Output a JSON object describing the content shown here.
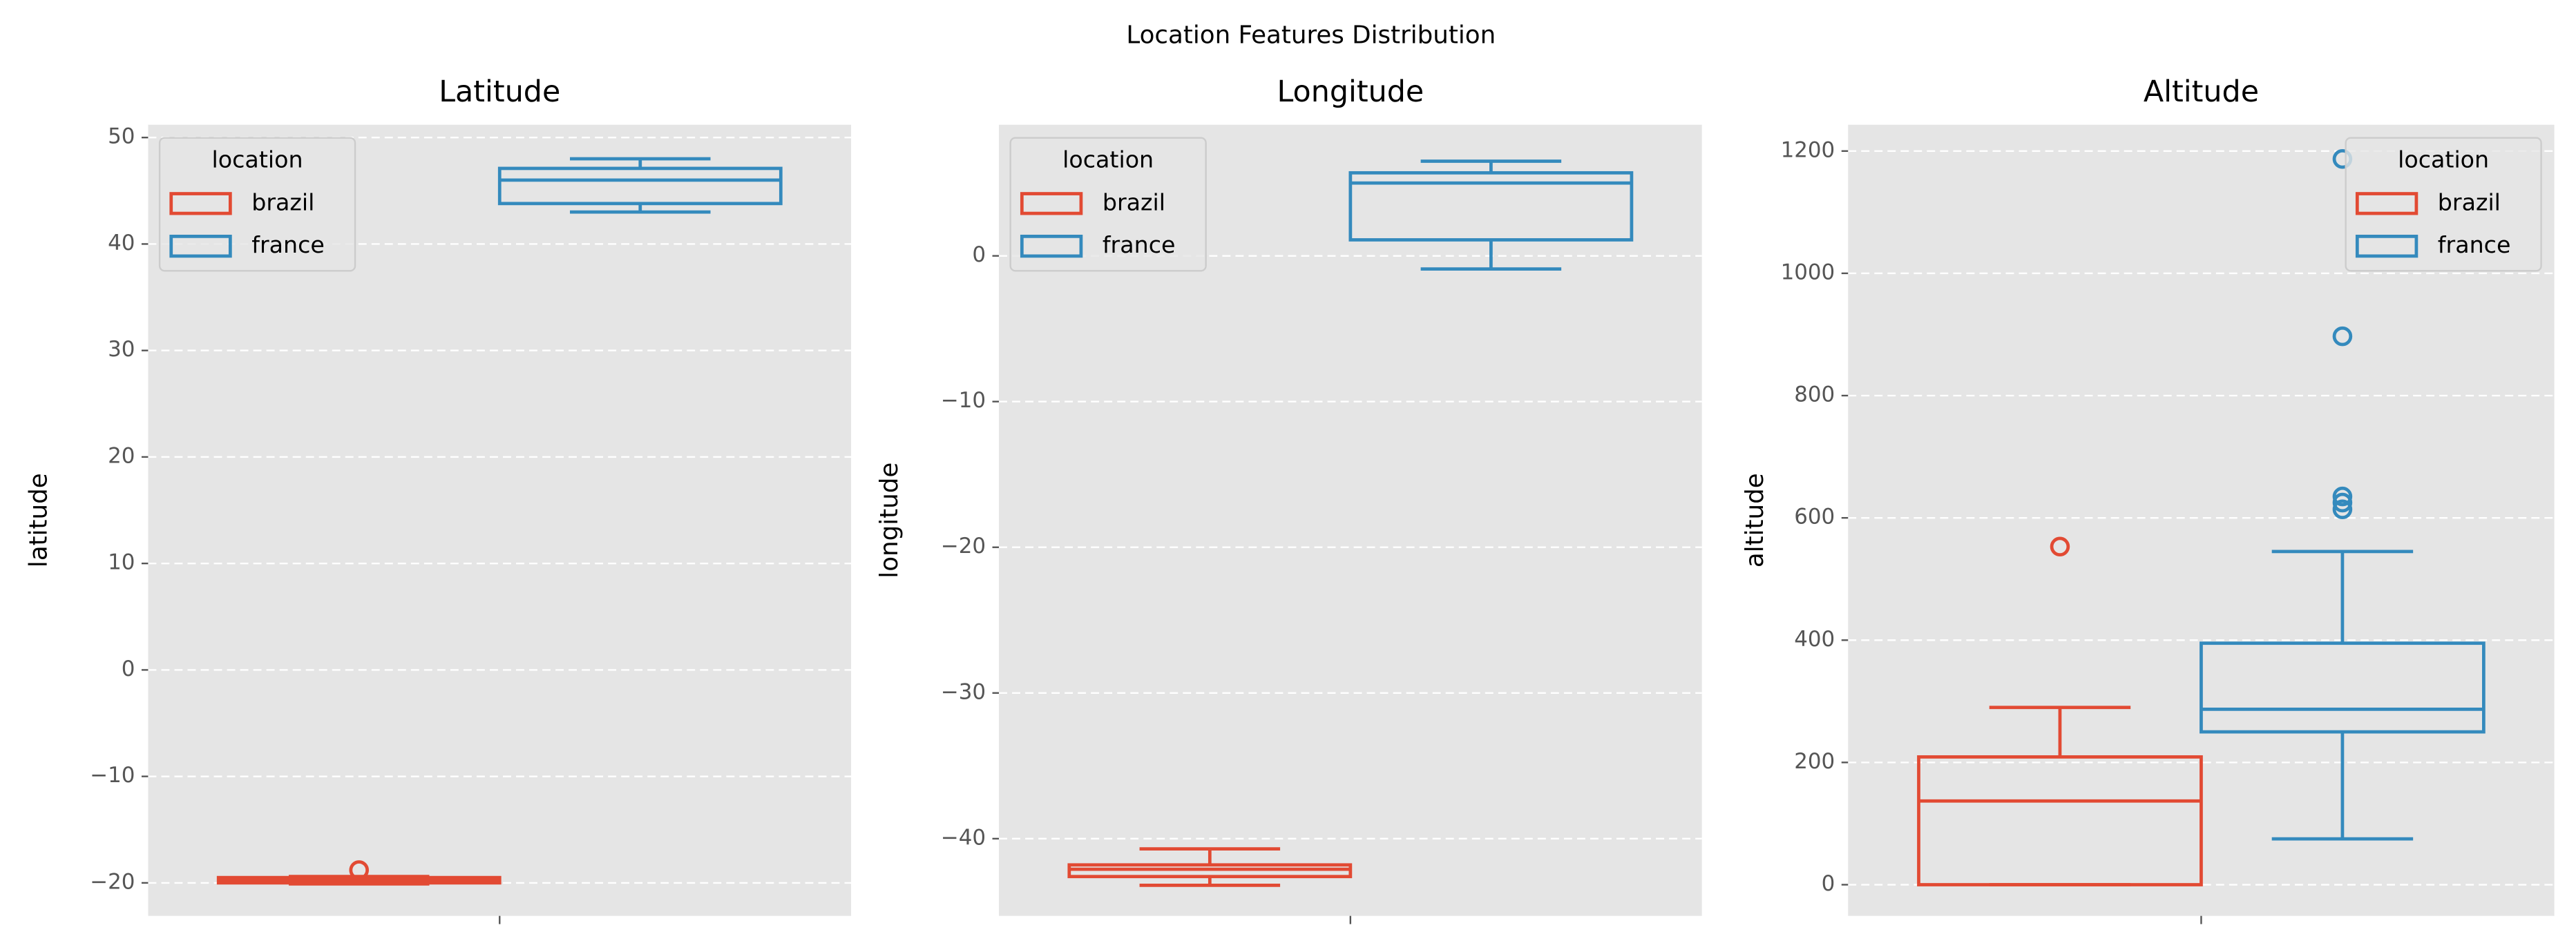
{
  "title": "Location Features Distribution",
  "chart_data": [
    {
      "type": "box",
      "title": "Latitude",
      "y_label": "latitude",
      "legend_title": "location",
      "legend": "upper left",
      "grid": true,
      "ylim": [
        -23.1,
        51.2
      ],
      "yticks": [
        {
          "value": -20,
          "label": "−20"
        },
        {
          "value": -10,
          "label": "−10"
        },
        0,
        10,
        20,
        30,
        40,
        50
      ],
      "series": [
        {
          "name": "brazil",
          "color": "#E24A33",
          "whislo": -20.1,
          "q1": -20.0,
          "med": -19.7,
          "q3": -19.5,
          "whishi": -19.4,
          "fliers": [
            -18.8
          ]
        },
        {
          "name": "france",
          "color": "#348ABD",
          "whislo": 43.0,
          "q1": 43.8,
          "med": 46.0,
          "q3": 47.1,
          "whishi": 48.0,
          "fliers": []
        }
      ]
    },
    {
      "type": "box",
      "title": "Longitude",
      "y_label": "longitude",
      "legend_title": "location",
      "legend": "upper left",
      "grid": true,
      "ylim": [
        -45.3,
        9.0
      ],
      "yticks": [
        {
          "value": -40,
          "label": "−40"
        },
        {
          "value": -30,
          "label": "−30"
        },
        {
          "value": -20,
          "label": "−20"
        },
        {
          "value": -10,
          "label": "−10"
        },
        0
      ],
      "series": [
        {
          "name": "brazil",
          "color": "#E24A33",
          "whislo": -43.2,
          "q1": -42.6,
          "med": -42.1,
          "q3": -41.8,
          "whishi": -40.7,
          "fliers": []
        },
        {
          "name": "france",
          "color": "#348ABD",
          "whislo": -0.9,
          "q1": 1.1,
          "med": 5.0,
          "q3": 5.7,
          "whishi": 6.5,
          "fliers": []
        }
      ]
    },
    {
      "type": "box",
      "title": "Altitude",
      "y_label": "altitude",
      "legend_title": "location",
      "legend": "upper right",
      "grid": true,
      "ylim": [
        -51,
        1243
      ],
      "yticks": [
        0,
        200,
        400,
        600,
        800,
        1000,
        1200
      ],
      "series": [
        {
          "name": "brazil",
          "color": "#E24A33",
          "whislo": 0,
          "q1": 0,
          "med": 137,
          "q3": 209,
          "whishi": 290,
          "fliers": [
            553
          ]
        },
        {
          "name": "france",
          "color": "#348ABD",
          "whislo": 75,
          "q1": 250,
          "med": 287,
          "q3": 395,
          "whishi": 545,
          "fliers": [
            614,
            625,
            635,
            897,
            1187
          ]
        }
      ]
    }
  ]
}
